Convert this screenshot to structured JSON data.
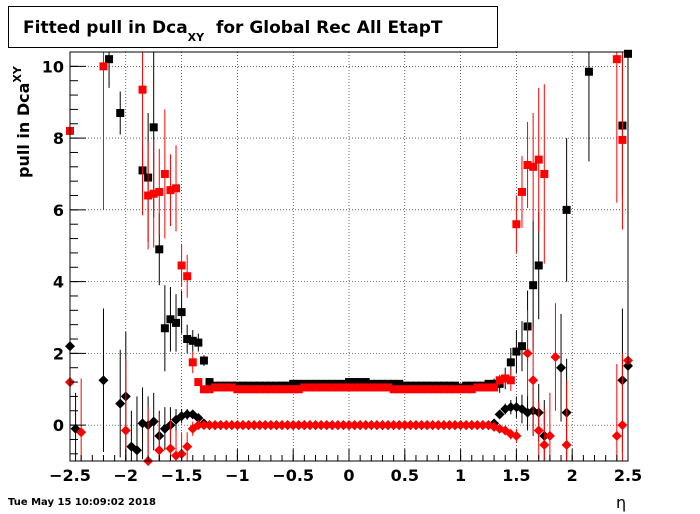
{
  "chart_data": {
    "type": "scatter",
    "title": {
      "main": "Fitted pull in Dca",
      "sub": "XY",
      "rest": "  for Global Rec All EtapT"
    },
    "ylabel": {
      "main": "pull in Dca",
      "sub": "XY"
    },
    "xlabel": "η",
    "xlim": [
      -2.5,
      2.5
    ],
    "ylim": [
      -1.0,
      10.4
    ],
    "xticks": [
      -2.5,
      -2,
      -1.5,
      -1,
      -0.5,
      0,
      0.5,
      1,
      1.5,
      2,
      2.5
    ],
    "xtick_labels": [
      "−2.5",
      "−2",
      "−1.5",
      "−1",
      "−0.5",
      "0",
      "0.5",
      "1",
      "1.5",
      "2",
      "2.5"
    ],
    "yticks": [
      0,
      2,
      4,
      6,
      8,
      10
    ],
    "ytick_labels": [
      "0",
      "2",
      "4",
      "6",
      "8",
      "10"
    ],
    "grid": true,
    "colors": {
      "black_series": "#000000",
      "red_series": "#ff0000"
    },
    "series": [
      {
        "marker": "square",
        "color": "#000000",
        "x": [
          -2.15,
          -2.05,
          -1.85,
          -1.8,
          -1.75,
          -1.7,
          -1.65,
          -1.6,
          -1.55,
          -1.5,
          -1.45,
          -1.4,
          -1.35,
          -1.3,
          -1.25,
          -1.2,
          -1.15,
          -1.1,
          -1.05,
          -1.0,
          -0.95,
          -0.9,
          -0.85,
          -0.8,
          -0.75,
          -0.7,
          -0.65,
          -0.6,
          -0.55,
          -0.5,
          -0.45,
          -0.4,
          -0.35,
          -0.3,
          -0.25,
          -0.2,
          -0.15,
          -0.1,
          -0.05,
          0.0,
          0.05,
          0.1,
          0.15,
          0.2,
          0.25,
          0.3,
          0.35,
          0.4,
          0.45,
          0.5,
          0.55,
          0.6,
          0.65,
          0.7,
          0.75,
          0.8,
          0.85,
          0.9,
          0.95,
          1.0,
          1.05,
          1.1,
          1.15,
          1.2,
          1.25,
          1.3,
          1.35,
          1.4,
          1.45,
          1.5,
          1.55,
          1.6,
          1.65,
          1.7,
          1.95,
          2.15,
          2.45,
          2.5
        ],
        "y": [
          10.2,
          8.7,
          7.1,
          6.9,
          8.3,
          4.9,
          2.7,
          2.95,
          2.85,
          3.15,
          2.4,
          2.35,
          2.3,
          1.8,
          1.2,
          1.1,
          1.1,
          1.1,
          1.1,
          1.1,
          1.1,
          1.1,
          1.1,
          1.1,
          1.1,
          1.1,
          1.1,
          1.1,
          1.1,
          1.15,
          1.15,
          1.15,
          1.15,
          1.15,
          1.15,
          1.15,
          1.15,
          1.15,
          1.15,
          1.2,
          1.2,
          1.2,
          1.2,
          1.15,
          1.15,
          1.15,
          1.15,
          1.15,
          1.15,
          1.1,
          1.1,
          1.1,
          1.1,
          1.1,
          1.1,
          1.1,
          1.1,
          1.1,
          1.1,
          1.05,
          1.1,
          1.1,
          1.1,
          1.1,
          1.15,
          1.15,
          1.15,
          1.3,
          1.75,
          2.05,
          2.2,
          2.75,
          3.9,
          4.45,
          6.0,
          9.85,
          8.35,
          10.35
        ],
        "yerr": [
          0.8,
          0.6,
          0.6,
          1.8,
          2.5,
          1.0,
          1.2,
          0.9,
          0.8,
          0.6,
          0.4,
          0.3,
          0.25,
          0.15,
          0.05,
          0.05,
          0.05,
          0.05,
          0.05,
          0.05,
          0.05,
          0.05,
          0.05,
          0.05,
          0.05,
          0.05,
          0.05,
          0.05,
          0.05,
          0.05,
          0.05,
          0.05,
          0.05,
          0.05,
          0.05,
          0.05,
          0.05,
          0.05,
          0.05,
          0.05,
          0.05,
          0.05,
          0.05,
          0.05,
          0.05,
          0.05,
          0.05,
          0.05,
          0.05,
          0.05,
          0.05,
          0.05,
          0.05,
          0.05,
          0.05,
          0.05,
          0.05,
          0.05,
          0.05,
          0.05,
          0.05,
          0.05,
          0.05,
          0.05,
          0.1,
          0.15,
          0.25,
          0.3,
          0.4,
          0.6,
          0.7,
          1.0,
          1.8,
          1.5,
          2.0,
          2.5,
          2.0,
          1.8
        ]
      },
      {
        "marker": "square",
        "color": "#ff0000",
        "x": [
          -2.5,
          -2.2,
          -1.85,
          -1.8,
          -1.75,
          -1.7,
          -1.65,
          -1.6,
          -1.55,
          -1.5,
          -1.45,
          -1.4,
          -1.35,
          -1.3,
          -1.25,
          -1.2,
          -1.15,
          -1.1,
          -1.05,
          -1.0,
          -0.95,
          -0.9,
          -0.85,
          -0.8,
          -0.75,
          -0.7,
          -0.65,
          -0.6,
          -0.55,
          -0.5,
          -0.45,
          -0.4,
          -0.35,
          -0.3,
          -0.25,
          -0.2,
          -0.15,
          -0.1,
          -0.05,
          0.0,
          0.05,
          0.1,
          0.15,
          0.2,
          0.25,
          0.3,
          0.35,
          0.4,
          0.45,
          0.5,
          0.55,
          0.6,
          0.65,
          0.7,
          0.75,
          0.8,
          0.85,
          0.9,
          0.95,
          1.0,
          1.05,
          1.1,
          1.15,
          1.2,
          1.25,
          1.3,
          1.35,
          1.4,
          1.45,
          1.5,
          1.55,
          1.6,
          1.65,
          1.7,
          1.75,
          2.4,
          2.45
        ],
        "y": [
          8.2,
          10.0,
          9.35,
          6.4,
          6.45,
          6.5,
          7.0,
          6.55,
          6.6,
          4.45,
          4.15,
          1.75,
          1.2,
          1.0,
          1.0,
          1.05,
          1.05,
          1.05,
          1.05,
          1.0,
          1.0,
          1.0,
          1.0,
          1.0,
          1.0,
          1.0,
          1.0,
          1.0,
          1.0,
          1.0,
          1.0,
          1.05,
          1.05,
          1.05,
          1.05,
          1.05,
          1.05,
          1.05,
          1.05,
          1.05,
          1.05,
          1.05,
          1.05,
          1.05,
          1.05,
          1.05,
          1.05,
          1.0,
          1.0,
          1.0,
          1.0,
          1.0,
          1.0,
          1.0,
          1.0,
          1.0,
          1.0,
          1.0,
          1.0,
          1.0,
          1.0,
          1.0,
          1.05,
          1.05,
          1.05,
          1.05,
          1.25,
          1.3,
          1.25,
          5.6,
          6.5,
          7.25,
          7.2,
          7.4,
          7.0,
          10.2,
          7.95
        ],
        "yerr": [
          6.0,
          4.0,
          3.5,
          1.5,
          1.5,
          1.2,
          1.8,
          1.0,
          1.2,
          0.6,
          0.6,
          0.3,
          0.1,
          0.05,
          0.05,
          0.05,
          0.05,
          0.05,
          0.05,
          0.05,
          0.05,
          0.05,
          0.05,
          0.05,
          0.05,
          0.05,
          0.05,
          0.05,
          0.05,
          0.05,
          0.05,
          0.05,
          0.05,
          0.05,
          0.05,
          0.05,
          0.05,
          0.05,
          0.05,
          0.05,
          0.05,
          0.05,
          0.05,
          0.05,
          0.05,
          0.05,
          0.05,
          0.05,
          0.05,
          0.05,
          0.05,
          0.05,
          0.05,
          0.05,
          0.05,
          0.05,
          0.05,
          0.05,
          0.05,
          0.05,
          0.05,
          0.05,
          0.05,
          0.05,
          0.05,
          0.05,
          0.15,
          0.2,
          0.3,
          0.8,
          1.0,
          1.2,
          1.5,
          2.0,
          2.5,
          4.0,
          2.5
        ]
      },
      {
        "marker": "diamond",
        "color": "#000000",
        "x": [
          -2.5,
          -2.45,
          -2.2,
          -2.05,
          -2.0,
          -1.95,
          -1.9,
          -1.85,
          -1.8,
          -1.75,
          -1.7,
          -1.65,
          -1.6,
          -1.55,
          -1.5,
          -1.45,
          -1.4,
          -1.35,
          -1.3,
          -1.25,
          -1.2,
          -1.15,
          -1.1,
          -1.05,
          -1.0,
          -0.95,
          -0.9,
          -0.85,
          -0.8,
          -0.75,
          -0.7,
          -0.65,
          -0.6,
          -0.55,
          -0.5,
          -0.45,
          -0.4,
          -0.35,
          -0.3,
          -0.25,
          -0.2,
          -0.15,
          -0.1,
          -0.05,
          0.0,
          0.05,
          0.1,
          0.15,
          0.2,
          0.25,
          0.3,
          0.35,
          0.4,
          0.45,
          0.5,
          0.55,
          0.6,
          0.65,
          0.7,
          0.75,
          0.8,
          0.85,
          0.9,
          0.95,
          1.0,
          1.05,
          1.1,
          1.15,
          1.2,
          1.25,
          1.3,
          1.35,
          1.4,
          1.45,
          1.5,
          1.55,
          1.6,
          1.65,
          1.7,
          1.75,
          1.9,
          1.95,
          2.45,
          2.5
        ],
        "y": [
          2.2,
          -0.1,
          1.25,
          0.6,
          0.8,
          -0.6,
          -0.7,
          0.05,
          0.0,
          0.1,
          -0.3,
          -0.1,
          0.0,
          0.15,
          0.25,
          0.3,
          0.3,
          0.2,
          0.05,
          0.0,
          0.0,
          0.0,
          0.0,
          0.0,
          0.0,
          0.0,
          0.0,
          0.0,
          0.0,
          0.0,
          0.0,
          0.0,
          0.0,
          0.0,
          0.0,
          0.0,
          0.0,
          0.0,
          0.0,
          0.0,
          0.0,
          0.0,
          0.0,
          0.0,
          0.0,
          0.0,
          0.0,
          0.0,
          0.0,
          0.0,
          0.0,
          0.0,
          0.0,
          0.0,
          0.0,
          0.0,
          0.0,
          0.0,
          0.0,
          0.0,
          0.0,
          0.0,
          0.0,
          0.0,
          0.0,
          0.0,
          0.0,
          0.0,
          0.0,
          0.0,
          0.05,
          0.3,
          0.45,
          0.5,
          0.5,
          0.45,
          0.35,
          0.4,
          0.35,
          -0.3,
          1.6,
          0.35,
          1.25,
          1.65
        ],
        "yerr": [
          1.5,
          1.0,
          2.0,
          1.5,
          1.8,
          1.0,
          1.5,
          1.0,
          0.8,
          0.8,
          0.7,
          0.6,
          0.5,
          0.3,
          0.2,
          0.15,
          0.1,
          0.08,
          0.05,
          0.03,
          0.03,
          0.03,
          0.03,
          0.03,
          0.03,
          0.03,
          0.03,
          0.03,
          0.03,
          0.03,
          0.03,
          0.03,
          0.03,
          0.03,
          0.03,
          0.03,
          0.03,
          0.03,
          0.03,
          0.03,
          0.03,
          0.03,
          0.03,
          0.03,
          0.03,
          0.03,
          0.03,
          0.03,
          0.03,
          0.03,
          0.03,
          0.03,
          0.03,
          0.03,
          0.03,
          0.03,
          0.03,
          0.03,
          0.03,
          0.03,
          0.03,
          0.03,
          0.03,
          0.03,
          0.03,
          0.03,
          0.03,
          0.03,
          0.03,
          0.05,
          0.08,
          0.1,
          0.15,
          0.2,
          0.3,
          0.4,
          0.5,
          0.7,
          0.8,
          1.0,
          1.5,
          1.5,
          2.0,
          1.5
        ]
      },
      {
        "marker": "diamond",
        "color": "#ff0000",
        "x": [
          -2.5,
          -2.4,
          -2.0,
          -1.8,
          -1.7,
          -1.6,
          -1.55,
          -1.5,
          -1.45,
          -1.4,
          -1.35,
          -1.3,
          -1.25,
          -1.2,
          -1.15,
          -1.1,
          -1.05,
          -1.0,
          -0.95,
          -0.9,
          -0.85,
          -0.8,
          -0.75,
          -0.7,
          -0.65,
          -0.6,
          -0.55,
          -0.5,
          -0.45,
          -0.4,
          -0.35,
          -0.3,
          -0.25,
          -0.2,
          -0.15,
          -0.1,
          -0.05,
          0.0,
          0.05,
          0.1,
          0.15,
          0.2,
          0.25,
          0.3,
          0.35,
          0.4,
          0.45,
          0.5,
          0.55,
          0.6,
          0.65,
          0.7,
          0.75,
          0.8,
          0.85,
          0.9,
          0.95,
          1.0,
          1.05,
          1.1,
          1.15,
          1.2,
          1.25,
          1.3,
          1.35,
          1.4,
          1.45,
          1.5,
          1.6,
          1.65,
          1.7,
          1.75,
          1.8,
          1.85,
          1.95,
          2.4,
          2.45,
          2.5
        ],
        "y": [
          1.2,
          -0.2,
          -0.15,
          -1.0,
          -0.7,
          -0.65,
          -0.85,
          -0.8,
          -0.6,
          -0.1,
          0.0,
          0.0,
          0.0,
          0.0,
          0.0,
          0.0,
          0.0,
          0.0,
          0.0,
          0.0,
          0.0,
          0.0,
          0.0,
          0.0,
          0.0,
          0.0,
          0.0,
          0.0,
          0.0,
          0.0,
          0.0,
          0.0,
          0.0,
          0.0,
          0.0,
          0.0,
          0.0,
          0.0,
          0.0,
          0.0,
          0.0,
          0.0,
          0.0,
          0.0,
          0.0,
          0.0,
          0.0,
          0.0,
          0.0,
          0.0,
          0.0,
          0.0,
          0.0,
          0.0,
          0.0,
          0.0,
          0.0,
          0.0,
          0.0,
          0.0,
          0.0,
          0.0,
          0.0,
          -0.05,
          -0.1,
          -0.15,
          -0.25,
          -0.3,
          2.0,
          1.25,
          -0.15,
          -0.55,
          -0.3,
          1.9,
          -0.55,
          -0.3,
          0.0,
          1.8
        ],
        "yerr": [
          1.5,
          1.5,
          2.0,
          1.5,
          1.0,
          0.8,
          0.7,
          0.6,
          0.4,
          0.2,
          0.08,
          0.05,
          0.03,
          0.03,
          0.03,
          0.03,
          0.03,
          0.03,
          0.03,
          0.03,
          0.03,
          0.03,
          0.03,
          0.03,
          0.03,
          0.03,
          0.03,
          0.03,
          0.03,
          0.03,
          0.03,
          0.03,
          0.03,
          0.03,
          0.03,
          0.03,
          0.03,
          0.03,
          0.03,
          0.03,
          0.03,
          0.03,
          0.03,
          0.03,
          0.03,
          0.03,
          0.03,
          0.03,
          0.03,
          0.03,
          0.03,
          0.03,
          0.03,
          0.03,
          0.03,
          0.03,
          0.03,
          0.03,
          0.03,
          0.03,
          0.03,
          0.03,
          0.03,
          0.05,
          0.08,
          0.1,
          0.15,
          0.2,
          1.2,
          1.5,
          0.8,
          1.0,
          1.2,
          1.5,
          1.8,
          2.0,
          2.0,
          1.5
        ]
      }
    ]
  },
  "footer": {
    "timestamp": "Tue May 15 10:09:02 2018"
  }
}
